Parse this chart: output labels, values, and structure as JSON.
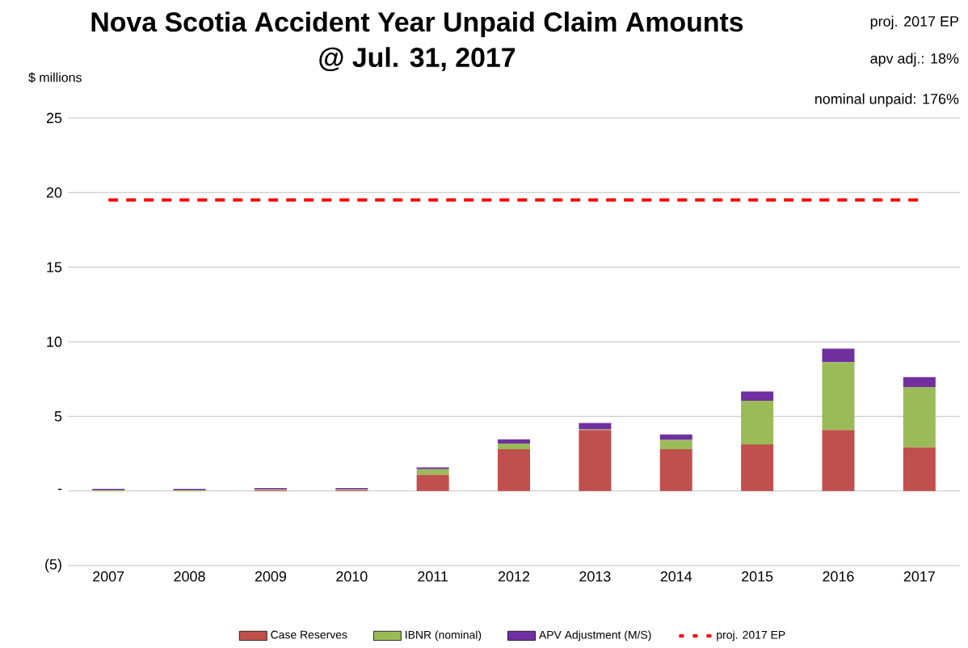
{
  "chart_data": {
    "type": "bar",
    "title": "Nova Scotia Accident Year Unpaid Claim Amounts\n@ Jul. 31, 2017",
    "ylabel": "$ millions",
    "annotations": [
      "proj. 2017 EP",
      "apv adj.: 18%",
      "nominal unpaid: 176%"
    ],
    "categories": [
      "2007",
      "2008",
      "2009",
      "2010",
      "2011",
      "2012",
      "2013",
      "2014",
      "2015",
      "2016",
      "2017"
    ],
    "stacked": true,
    "grid": "y",
    "legend": "bottom",
    "ylim": [
      -5,
      25
    ],
    "yticks": [
      {
        "value": -5,
        "label": "(5)"
      },
      {
        "value": 0,
        "label": "-"
      },
      5,
      10,
      15,
      20,
      25
    ],
    "series": [
      {
        "name": "Case Reserves",
        "color": "#c0504d",
        "values": [
          0,
          0,
          0.05,
          0.05,
          1.08,
          2.8,
          4.08,
          2.8,
          3.12,
          4.08,
          2.92
        ]
      },
      {
        "name": "IBNR (nominal)",
        "color": "#9bbb59",
        "values": [
          0.05,
          0.05,
          0.05,
          0.05,
          0.38,
          0.37,
          0.05,
          0.62,
          2.92,
          4.55,
          4.04
        ]
      },
      {
        "name": "APV Adjustment (M/S)",
        "color": "#7030a0",
        "values": [
          0.1,
          0.1,
          0.1,
          0.1,
          0.12,
          0.29,
          0.42,
          0.37,
          0.63,
          0.91,
          0.67
        ]
      },
      {
        "name": "proj. 2017 EP",
        "type": "line",
        "color": "#ff0000",
        "line_style": "dashed",
        "values": [
          19.5,
          19.5,
          19.5,
          19.5,
          19.5,
          19.5,
          19.5,
          19.5,
          19.5,
          19.5,
          19.5
        ]
      }
    ]
  }
}
